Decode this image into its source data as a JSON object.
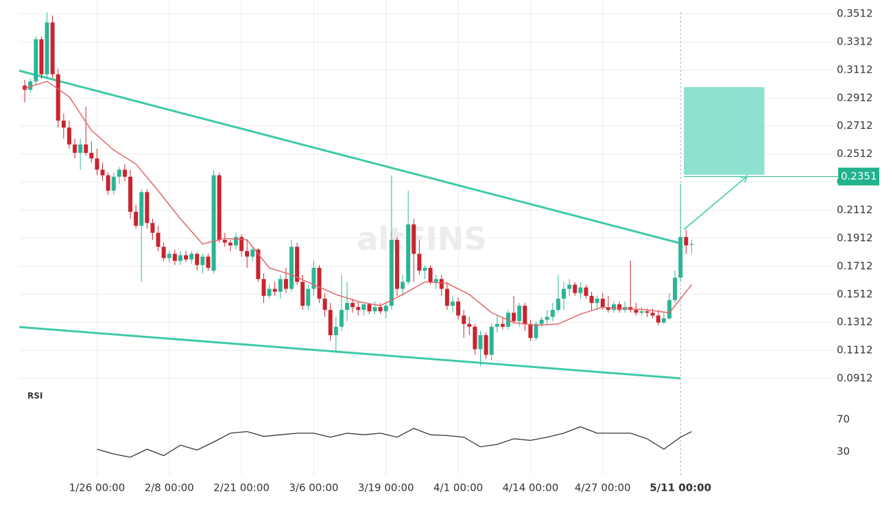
{
  "chart_data": {
    "type": "candlestick",
    "watermark": "altFINS",
    "rsi_label": "RSI",
    "xlim": [
      12,
      158.5
    ],
    "xticks": [
      {
        "value": 26,
        "label": "1/26 00:00"
      },
      {
        "value": 39,
        "label": "2/8 00:00"
      },
      {
        "value": 52,
        "label": "2/21 00:00"
      },
      {
        "value": 65,
        "label": "3/6 00:00"
      },
      {
        "value": 78,
        "label": "3/19 00:00"
      },
      {
        "value": 91,
        "label": "4/1 00:00"
      },
      {
        "value": 104,
        "label": "4/14 00:00"
      },
      {
        "value": 117,
        "label": "4/27 00:00"
      },
      {
        "value": 131,
        "label": "5/11 00:00"
      }
    ],
    "highlight_xtick": 8,
    "ylim": [
      0.0873,
      0.361
    ],
    "yticks": [
      0.0912,
      0.1112,
      0.1312,
      0.1512,
      0.1712,
      0.1912,
      0.2112,
      0.2312,
      0.2512,
      0.2712,
      0.2912,
      0.3112,
      0.3312,
      0.3512
    ],
    "grid": true,
    "up_color": "#2bb594",
    "down_color": "#c9242f",
    "x": [
      13,
      14,
      15,
      16,
      17,
      18,
      19,
      20,
      21,
      22,
      23,
      24,
      25,
      26,
      27,
      28,
      29,
      30,
      31,
      32,
      33,
      34,
      35,
      36,
      37,
      38,
      39,
      40,
      41,
      42,
      43,
      44,
      45,
      46,
      47,
      48,
      49,
      50,
      51,
      52,
      53,
      54,
      55,
      56,
      57,
      58,
      59,
      60,
      61,
      62,
      63,
      64,
      65,
      66,
      67,
      68,
      69,
      70,
      71,
      72,
      73,
      74,
      75,
      76,
      77,
      78,
      79,
      80,
      81,
      82,
      83,
      84,
      85,
      86,
      87,
      88,
      89,
      90,
      91,
      92,
      93,
      94,
      95,
      96,
      97,
      98,
      99,
      100,
      101,
      102,
      103,
      104,
      105,
      106,
      107,
      108,
      109,
      110,
      111,
      112,
      113,
      114,
      115,
      116,
      117,
      118,
      119,
      120,
      121,
      122,
      123,
      124,
      125,
      126,
      127,
      128,
      129,
      130,
      131,
      132,
      133
    ],
    "ohlc": [
      [
        0.3,
        0.304,
        0.288,
        0.297
      ],
      [
        0.297,
        0.305,
        0.295,
        0.303
      ],
      [
        0.303,
        0.335,
        0.3,
        0.333
      ],
      [
        0.333,
        0.335,
        0.305,
        0.308
      ],
      [
        0.308,
        0.352,
        0.305,
        0.345
      ],
      [
        0.345,
        0.35,
        0.305,
        0.308
      ],
      [
        0.308,
        0.312,
        0.27,
        0.275
      ],
      [
        0.275,
        0.28,
        0.262,
        0.27
      ],
      [
        0.27,
        0.275,
        0.255,
        0.258
      ],
      [
        0.258,
        0.262,
        0.248,
        0.252
      ],
      [
        0.252,
        0.262,
        0.24,
        0.258
      ],
      [
        0.258,
        0.285,
        0.25,
        0.252
      ],
      [
        0.252,
        0.26,
        0.245,
        0.248
      ],
      [
        0.248,
        0.255,
        0.236,
        0.24
      ],
      [
        0.24,
        0.245,
        0.232,
        0.236
      ],
      [
        0.236,
        0.238,
        0.222,
        0.225
      ],
      [
        0.225,
        0.238,
        0.222,
        0.235
      ],
      [
        0.235,
        0.242,
        0.23,
        0.24
      ],
      [
        0.24,
        0.244,
        0.232,
        0.235
      ],
      [
        0.235,
        0.24,
        0.205,
        0.21
      ],
      [
        0.21,
        0.215,
        0.198,
        0.2
      ],
      [
        0.2,
        0.226,
        0.16,
        0.224
      ],
      [
        0.224,
        0.226,
        0.198,
        0.202
      ],
      [
        0.202,
        0.205,
        0.19,
        0.195
      ],
      [
        0.195,
        0.2,
        0.182,
        0.185
      ],
      [
        0.185,
        0.188,
        0.175,
        0.177
      ],
      [
        0.177,
        0.182,
        0.174,
        0.18
      ],
      [
        0.18,
        0.183,
        0.172,
        0.175
      ],
      [
        0.175,
        0.182,
        0.172,
        0.179
      ],
      [
        0.179,
        0.182,
        0.174,
        0.176
      ],
      [
        0.176,
        0.182,
        0.173,
        0.18
      ],
      [
        0.18,
        0.181,
        0.168,
        0.172
      ],
      [
        0.172,
        0.18,
        0.166,
        0.178
      ],
      [
        0.178,
        0.18,
        0.168,
        0.17
      ],
      [
        0.168,
        0.24,
        0.166,
        0.236
      ],
      [
        0.236,
        0.238,
        0.188,
        0.19
      ],
      [
        0.19,
        0.195,
        0.185,
        0.188
      ],
      [
        0.188,
        0.19,
        0.182,
        0.186
      ],
      [
        0.186,
        0.195,
        0.183,
        0.192
      ],
      [
        0.192,
        0.194,
        0.178,
        0.182
      ],
      [
        0.182,
        0.19,
        0.17,
        0.178
      ],
      [
        0.178,
        0.185,
        0.175,
        0.183
      ],
      [
        0.183,
        0.184,
        0.16,
        0.162
      ],
      [
        0.162,
        0.166,
        0.145,
        0.15
      ],
      [
        0.15,
        0.158,
        0.148,
        0.155
      ],
      [
        0.155,
        0.16,
        0.15,
        0.153
      ],
      [
        0.153,
        0.165,
        0.148,
        0.162
      ],
      [
        0.162,
        0.17,
        0.152,
        0.155
      ],
      [
        0.155,
        0.19,
        0.153,
        0.185
      ],
      [
        0.185,
        0.188,
        0.158,
        0.16
      ],
      [
        0.16,
        0.165,
        0.14,
        0.143
      ],
      [
        0.143,
        0.158,
        0.14,
        0.155
      ],
      [
        0.155,
        0.175,
        0.15,
        0.17
      ],
      [
        0.17,
        0.172,
        0.145,
        0.148
      ],
      [
        0.148,
        0.152,
        0.135,
        0.14
      ],
      [
        0.14,
        0.145,
        0.118,
        0.122
      ],
      [
        0.122,
        0.135,
        0.11,
        0.128
      ],
      [
        0.128,
        0.165,
        0.125,
        0.14
      ],
      [
        0.14,
        0.16,
        0.132,
        0.145
      ],
      [
        0.145,
        0.148,
        0.138,
        0.142
      ],
      [
        0.142,
        0.146,
        0.136,
        0.14
      ],
      [
        0.14,
        0.145,
        0.136,
        0.144
      ],
      [
        0.144,
        0.145,
        0.137,
        0.139
      ],
      [
        0.139,
        0.146,
        0.137,
        0.142
      ],
      [
        0.142,
        0.145,
        0.137,
        0.139
      ],
      [
        0.139,
        0.146,
        0.134,
        0.143
      ],
      [
        0.143,
        0.236,
        0.14,
        0.19
      ],
      [
        0.19,
        0.192,
        0.15,
        0.155
      ],
      [
        0.155,
        0.165,
        0.15,
        0.16
      ],
      [
        0.16,
        0.225,
        0.158,
        0.201
      ],
      [
        0.201,
        0.205,
        0.16,
        0.18
      ],
      [
        0.18,
        0.19,
        0.165,
        0.168
      ],
      [
        0.168,
        0.172,
        0.162,
        0.17
      ],
      [
        0.17,
        0.172,
        0.158,
        0.16
      ],
      [
        0.16,
        0.165,
        0.155,
        0.162
      ],
      [
        0.162,
        0.165,
        0.15,
        0.155
      ],
      [
        0.155,
        0.16,
        0.14,
        0.143
      ],
      [
        0.143,
        0.15,
        0.138,
        0.146
      ],
      [
        0.146,
        0.149,
        0.133,
        0.136
      ],
      [
        0.136,
        0.14,
        0.12,
        0.13
      ],
      [
        0.13,
        0.135,
        0.122,
        0.128
      ],
      [
        0.128,
        0.13,
        0.108,
        0.112
      ],
      [
        0.112,
        0.125,
        0.1,
        0.122
      ],
      [
        0.122,
        0.124,
        0.105,
        0.108
      ],
      [
        0.108,
        0.13,
        0.104,
        0.128
      ],
      [
        0.128,
        0.136,
        0.124,
        0.13
      ],
      [
        0.13,
        0.135,
        0.126,
        0.128
      ],
      [
        0.128,
        0.14,
        0.126,
        0.138
      ],
      [
        0.138,
        0.15,
        0.13,
        0.132
      ],
      [
        0.132,
        0.145,
        0.128,
        0.143
      ],
      [
        0.143,
        0.145,
        0.125,
        0.13
      ],
      [
        0.13,
        0.133,
        0.118,
        0.12
      ],
      [
        0.12,
        0.132,
        0.118,
        0.13
      ],
      [
        0.13,
        0.135,
        0.128,
        0.133
      ],
      [
        0.133,
        0.14,
        0.13,
        0.135
      ],
      [
        0.135,
        0.145,
        0.132,
        0.14
      ],
      [
        0.14,
        0.165,
        0.138,
        0.148
      ],
      [
        0.148,
        0.16,
        0.14,
        0.155
      ],
      [
        0.155,
        0.162,
        0.15,
        0.158
      ],
      [
        0.158,
        0.16,
        0.15,
        0.152
      ],
      [
        0.152,
        0.16,
        0.148,
        0.156
      ],
      [
        0.156,
        0.158,
        0.148,
        0.15
      ],
      [
        0.15,
        0.153,
        0.14,
        0.145
      ],
      [
        0.145,
        0.15,
        0.14,
        0.148
      ],
      [
        0.148,
        0.152,
        0.14,
        0.142
      ],
      [
        0.142,
        0.15,
        0.138,
        0.14
      ],
      [
        0.14,
        0.146,
        0.138,
        0.144
      ],
      [
        0.144,
        0.146,
        0.138,
        0.14
      ],
      [
        0.14,
        0.146,
        0.138,
        0.142
      ],
      [
        0.142,
        0.175,
        0.138,
        0.14
      ],
      [
        0.14,
        0.145,
        0.136,
        0.138
      ],
      [
        0.138,
        0.142,
        0.136,
        0.139
      ],
      [
        0.139,
        0.141,
        0.135,
        0.138
      ],
      [
        0.138,
        0.141,
        0.134,
        0.136
      ],
      [
        0.136,
        0.14,
        0.129,
        0.131
      ],
      [
        0.131,
        0.138,
        0.13,
        0.134
      ],
      [
        0.134,
        0.152,
        0.133,
        0.147
      ],
      [
        0.147,
        0.168,
        0.145,
        0.163
      ],
      [
        0.163,
        0.23,
        0.16,
        0.192
      ],
      [
        0.192,
        0.197,
        0.18,
        0.186
      ],
      [
        0.187,
        0.19,
        0.18,
        0.187
      ]
    ],
    "ma": {
      "color": "#e06666",
      "x": [
        13,
        17,
        21,
        25,
        29,
        33,
        37,
        41,
        45,
        49,
        53,
        57,
        61,
        65,
        69,
        73,
        77,
        81,
        85,
        89,
        93,
        97,
        101,
        105,
        109,
        113,
        117,
        121,
        125,
        129,
        133
      ],
      "values": [
        0.298,
        0.303,
        0.292,
        0.268,
        0.254,
        0.244,
        0.225,
        0.205,
        0.187,
        0.191,
        0.19,
        0.17,
        0.165,
        0.158,
        0.151,
        0.146,
        0.143,
        0.151,
        0.16,
        0.159,
        0.151,
        0.138,
        0.131,
        0.129,
        0.13,
        0.137,
        0.142,
        0.141,
        0.14,
        0.138,
        0.158
      ]
    },
    "trendlines": [
      {
        "color": "#3ecaa8",
        "x": [
          12,
          131
        ],
        "y": [
          0.3106,
          0.1875
        ]
      },
      {
        "color": "#3ecaa8",
        "x": [
          12,
          131
        ],
        "y": [
          0.1278,
          0.0912
        ]
      }
    ],
    "target_box": {
      "color": "#8fe1cf",
      "x": [
        131.6,
        146.1
      ],
      "y": [
        0.2363,
        0.2989
      ]
    },
    "arrow": {
      "color": "#5fd3b8",
      "x": [
        131.6,
        143
      ],
      "y": [
        0.1973,
        0.2354
      ]
    },
    "price_tag": {
      "value": 0.2351,
      "color": "#22b38c"
    },
    "rsi": {
      "color": "#333333",
      "ylim": [
        0,
        100
      ],
      "yticks": [
        30,
        70
      ],
      "x": [
        26,
        29,
        32,
        35,
        38,
        41,
        44,
        47,
        50,
        53,
        56,
        59,
        62,
        65,
        68,
        71,
        74,
        77,
        80,
        83,
        86,
        89,
        92,
        95,
        98,
        101,
        104,
        107,
        110,
        113,
        116,
        119,
        122,
        125,
        128,
        131,
        133
      ],
      "values": [
        33,
        27,
        23,
        33,
        25,
        38,
        32,
        42,
        53,
        55,
        49,
        51,
        53,
        53,
        48,
        53,
        51,
        53,
        48,
        59,
        51,
        50,
        48,
        36,
        39,
        46,
        44,
        48,
        53,
        61,
        53,
        53,
        53,
        46,
        33,
        48,
        55
      ]
    }
  }
}
